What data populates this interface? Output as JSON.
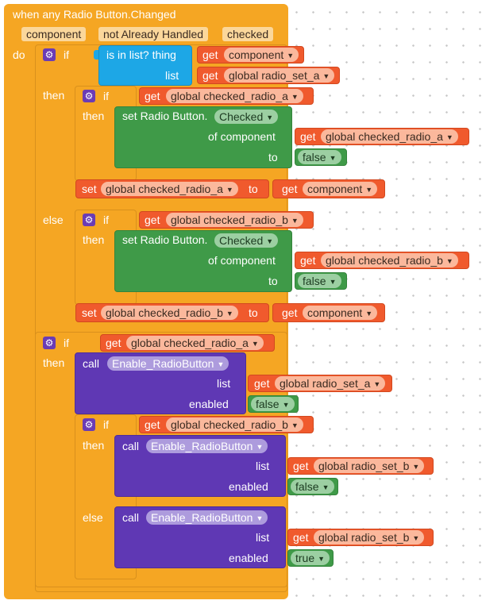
{
  "event": {
    "title": "when any Radio Button.Changed",
    "params": [
      "component",
      "notAlreadyHandled",
      "checked"
    ],
    "param_labels": {
      "component": "component",
      "notAlreadyHandled": "not Already Handled",
      "checked": "checked"
    },
    "do_label": "do"
  },
  "labels": {
    "if": "if",
    "then": "then",
    "else": "else",
    "get": "get",
    "set": "set",
    "to": "to",
    "call": "call",
    "list": "list",
    "enabled": "enabled",
    "of_component": "of component",
    "set_radio_button": "set Radio Button.",
    "is_in_list": "is in list? thing",
    "component": "component"
  },
  "vars": {
    "radio_set_a": "global radio_set_a",
    "radio_set_b": "global radio_set_b",
    "checked_a": "global checked_radio_a",
    "checked_b": "global checked_radio_b"
  },
  "property": "Checked",
  "procedure": "Enable_RadioButton",
  "bools": {
    "false": "false",
    "true": "true"
  },
  "colors": {
    "control": "#f5a623",
    "variable": "#f05a2d",
    "list": "#1da7e6",
    "component_setter": "#3f9a48",
    "procedure_call": "#5f38b4"
  }
}
